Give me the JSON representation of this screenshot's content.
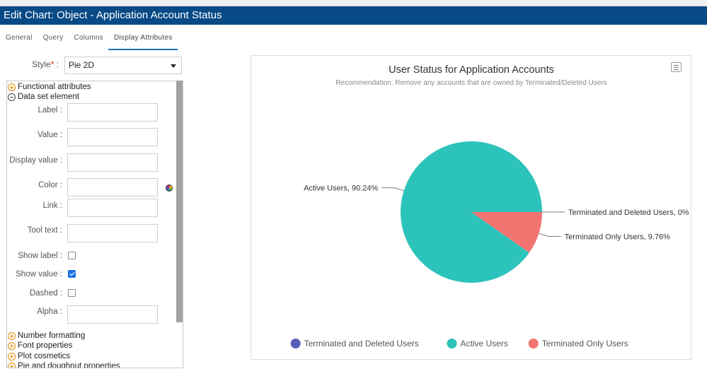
{
  "window": {
    "title": "Edit Chart: Object - Application Account Status"
  },
  "tabs": [
    {
      "label": "General",
      "active": false
    },
    {
      "label": "Query",
      "active": false
    },
    {
      "label": "Columns",
      "active": false
    },
    {
      "label": "Display Attributes",
      "active": true
    }
  ],
  "style_field": {
    "label": "Style",
    "required_mark": "*",
    "colon": ":",
    "value": "Pie 2D"
  },
  "sections": {
    "functional": "Functional attributes",
    "dataset": "Data set element",
    "number_formatting": "Number formatting",
    "font_properties": "Font properties",
    "plot_cosmetics": "Plot cosmetics",
    "pie_doughnut": "Pie and doughnut properties"
  },
  "fields": {
    "label": "Label :",
    "value": "Value :",
    "display_value": "Display value :",
    "color": "Color :",
    "link": "Link :",
    "tool_text": "Tool text :",
    "show_label": "Show label :",
    "show_value": "Show value :",
    "dashed": "Dashed :",
    "alpha": "Alpha :"
  },
  "checks": {
    "show_label": false,
    "show_value": true,
    "dashed": false
  },
  "chart_data": {
    "type": "pie",
    "title": "User Status for Application Accounts",
    "subtitle": "Recommendation: Remove any accounts that are owned by Terminated/Deleted Users",
    "categories": [
      "Terminated and Deleted Users",
      "Active Users",
      "Terminated Only Users"
    ],
    "values": [
      0,
      90.24,
      9.76
    ],
    "colors": [
      "#5a5fba",
      "#2cc3bb",
      "#f37471"
    ],
    "data_labels": [
      "Terminated and Deleted Users, 0%",
      "Active Users, 90.24%",
      "Terminated Only Users, 9.76%"
    ],
    "legend": "bottom"
  }
}
